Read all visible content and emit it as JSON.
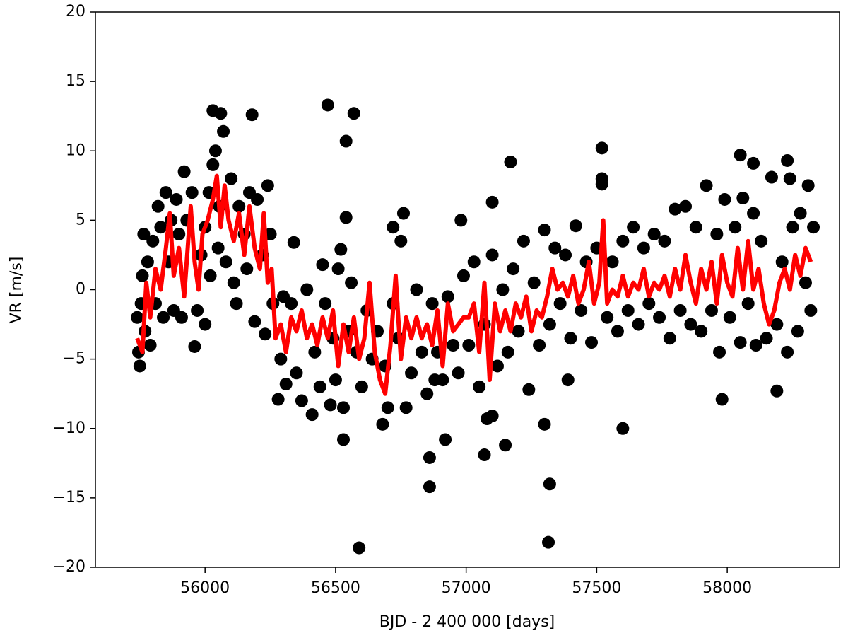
{
  "chart_data": {
    "type": "scatter",
    "xlabel": "BJD - 2 400 000 [days]",
    "ylabel": "VR [m/s]",
    "xlim": [
      55580,
      58430
    ],
    "ylim": [
      -20,
      20
    ],
    "xticks": [
      56000,
      56500,
      57000,
      57500,
      58000
    ],
    "yticks": [
      {
        "value": -20,
        "label": "−20"
      },
      {
        "value": -15,
        "label": "−15"
      },
      {
        "value": -10,
        "label": "−10"
      },
      {
        "value": -5,
        "label": "−5"
      },
      0,
      5,
      10,
      15,
      20
    ],
    "series": [
      {
        "type": "scatter",
        "color": "#000000",
        "x": [
          55740,
          55745,
          55750,
          55755,
          55760,
          55765,
          55770,
          55780,
          55790,
          55800,
          55810,
          55820,
          55830,
          55840,
          55850,
          55860,
          55870,
          55880,
          55890,
          55900,
          55910,
          55930,
          55950,
          55970,
          55985,
          56000,
          56000,
          56015,
          56020,
          56030,
          56040,
          56050,
          56055,
          56070,
          56080,
          56100,
          56110,
          56120,
          56130,
          56150,
          56160,
          56170,
          56190,
          56200,
          56220,
          56230,
          56240,
          56250,
          56260,
          56280,
          56290,
          56300,
          56310,
          56330,
          56340,
          56350,
          56370,
          56390,
          56410,
          56420,
          56440,
          56450,
          56460,
          56480,
          56490,
          56500,
          56510,
          56530,
          56550,
          56560,
          56580,
          56600,
          56620,
          56640,
          56660,
          56680,
          56690,
          56700,
          56720,
          56740,
          56750,
          56770,
          56790,
          56810,
          56830,
          56850,
          56870,
          56890,
          56910,
          56930,
          56950,
          56970,
          56990,
          57010,
          57030,
          57050,
          57070,
          57080,
          57100,
          57120,
          57140,
          57160,
          57180,
          57200,
          57220,
          57240,
          57260,
          57280,
          57300,
          57320,
          57340,
          57360,
          57380,
          57400,
          57420,
          57440,
          57460,
          57480,
          57500,
          57520,
          57540,
          57560,
          57580,
          57600,
          57620,
          57640,
          57660,
          57680,
          57700,
          57720,
          57740,
          57760,
          57780,
          57800,
          57820,
          57840,
          57860,
          57880,
          57900,
          57920,
          57940,
          57960,
          57970,
          57990,
          58010,
          58030,
          58050,
          58060,
          58080,
          58100,
          58110,
          58130,
          58150,
          58170,
          58190,
          58210,
          58230,
          58240,
          58250,
          58270,
          58280,
          58300,
          58310,
          58320,
          58330,
          56030,
          56060,
          56180,
          56470,
          56540,
          56570,
          56590,
          56530,
          56860,
          56860,
          56920,
          57070,
          57100,
          57150,
          57170,
          57300,
          57320,
          57315,
          57520,
          57520,
          57600,
          57980,
          58050,
          58100,
          58190,
          58230,
          57390,
          55960,
          55920,
          57100,
          56980,
          56760,
          56720,
          56540,
          56520,
          56880
        ],
        "values": [
          -2,
          -4.5,
          -5.5,
          -1,
          1,
          4,
          -3,
          2,
          -4,
          3.5,
          -1,
          6,
          4.5,
          -2,
          7,
          2,
          5,
          -1.5,
          6.5,
          4,
          -2,
          5,
          7,
          -1.5,
          2.5,
          4.5,
          -2.5,
          7,
          1,
          9,
          10,
          3,
          6,
          11.4,
          2,
          8,
          0.5,
          -1,
          6,
          4,
          1.5,
          7,
          -2.3,
          6.5,
          2.5,
          -3.2,
          7.5,
          4,
          -1,
          -7.9,
          -5,
          -0.5,
          -6.8,
          -1,
          3.4,
          -6,
          -8,
          0,
          -9,
          -4.5,
          -7,
          1.8,
          -1,
          -8.3,
          -3.5,
          -6.5,
          1.5,
          -8.5,
          -3,
          0.5,
          -4.5,
          -7,
          -1.5,
          -5,
          -3,
          -9.7,
          -5.5,
          -8.5,
          -1,
          -3.5,
          3.5,
          -8.5,
          -6,
          0,
          -4.5,
          -7.5,
          -1,
          -4.5,
          -6.5,
          -0.5,
          -4,
          -6,
          1,
          -4,
          2,
          -7,
          -2.5,
          -9.3,
          2.5,
          -5.5,
          0,
          -4.5,
          1.5,
          -3,
          3.5,
          -7.2,
          0.5,
          -4,
          4.3,
          -2.5,
          3,
          -1,
          2.5,
          -3.5,
          4.6,
          -1.5,
          2,
          -3.8,
          3,
          7.6,
          -2,
          2,
          -3,
          3.5,
          -1.5,
          4.5,
          -2.5,
          3,
          -1,
          4,
          -2,
          3.5,
          -3.5,
          5.8,
          -1.5,
          6,
          -2.5,
          4.5,
          -3,
          7.5,
          -1.5,
          4,
          -4.5,
          6.5,
          -2,
          4.5,
          -3.8,
          6.6,
          -1,
          5.5,
          -4,
          3.5,
          -3.5,
          8.1,
          -2.5,
          2,
          -4.5,
          8,
          4.5,
          -3,
          5.5,
          0.5,
          7.5,
          -1.5,
          4.5,
          12.9,
          12.7,
          12.6,
          13.3,
          10.7,
          12.7,
          -18.6,
          -10.8,
          -12.1,
          -14.2,
          -10.8,
          -11.9,
          -9.1,
          -11.2,
          9.2,
          -9.7,
          -14,
          -18.2,
          10.2,
          8,
          -10,
          -7.9,
          9.7,
          9.1,
          -7.3,
          9.3,
          -6.5,
          -4.1,
          8.5,
          6.3,
          5,
          5.5,
          4.5,
          5.2,
          2.9,
          -6.5
        ]
      },
      {
        "type": "line",
        "color": "#ff0000",
        "x": [
          55740,
          55760,
          55775,
          55790,
          55810,
          55830,
          55850,
          55865,
          55880,
          55900,
          55920,
          55945,
          55960,
          55975,
          55990,
          56010,
          56030,
          56045,
          56060,
          56075,
          56090,
          56110,
          56130,
          56150,
          56170,
          56190,
          56210,
          56225,
          56240,
          56255,
          56270,
          56290,
          56310,
          56330,
          56350,
          56370,
          56390,
          56410,
          56430,
          56450,
          56470,
          56490,
          56510,
          56530,
          56550,
          56570,
          56590,
          56610,
          56630,
          56650,
          56670,
          56690,
          56710,
          56730,
          56750,
          56770,
          56790,
          56810,
          56830,
          56850,
          56870,
          56890,
          56910,
          56930,
          56950,
          56970,
          56990,
          57010,
          57030,
          57050,
          57070,
          57090,
          57110,
          57130,
          57150,
          57170,
          57190,
          57210,
          57230,
          57250,
          57270,
          57290,
          57310,
          57330,
          57350,
          57370,
          57390,
          57410,
          57430,
          57450,
          57470,
          57490,
          57510,
          57525,
          57540,
          57560,
          57580,
          57600,
          57620,
          57640,
          57660,
          57680,
          57700,
          57720,
          57740,
          57760,
          57780,
          57800,
          57820,
          57840,
          57860,
          57880,
          57900,
          57920,
          57940,
          57960,
          57980,
          58000,
          58020,
          58040,
          58060,
          58080,
          58100,
          58120,
          58140,
          58160,
          58180,
          58200,
          58220,
          58240,
          58260,
          58280,
          58300,
          58320
        ],
        "values": [
          -3.5,
          -4.5,
          0.5,
          -2,
          1.5,
          0,
          3,
          5.5,
          1,
          3,
          -0.5,
          6,
          2,
          0,
          4,
          5,
          6.5,
          8.2,
          4.5,
          7.5,
          5,
          3.5,
          5.5,
          2.5,
          6,
          3,
          1.5,
          5.5,
          0.5,
          1.5,
          -3.5,
          -2.5,
          -4.5,
          -2,
          -3,
          -1.5,
          -3.5,
          -2.5,
          -4,
          -2,
          -3.5,
          -1.5,
          -5.5,
          -2.5,
          -4.5,
          -2,
          -5,
          -3.5,
          0.5,
          -4.5,
          -6.5,
          -7.5,
          -4,
          1,
          -5,
          -2,
          -3.5,
          -2,
          -3.5,
          -2.5,
          -4,
          -1.5,
          -5.5,
          -1,
          -3,
          -2.5,
          -2,
          -2,
          -1,
          -4.5,
          0.5,
          -6.5,
          -1,
          -3,
          -1.5,
          -3,
          -1,
          -2,
          -0.5,
          -3,
          -1.5,
          -2,
          -0.5,
          1.5,
          0,
          0.5,
          -0.5,
          1,
          -1,
          0,
          2,
          -1,
          0.5,
          5,
          -1,
          0,
          -0.5,
          1,
          -0.5,
          0.5,
          0,
          1.5,
          -0.5,
          0.5,
          0,
          1,
          -0.5,
          1.5,
          0,
          2.5,
          0.5,
          -1,
          1.5,
          0,
          2,
          -1,
          2.5,
          0.5,
          -0.5,
          3,
          0,
          3.5,
          0,
          1.5,
          -1,
          -2.5,
          -1.5,
          0.5,
          1.5,
          0,
          2.5,
          1,
          3,
          2
        ]
      }
    ]
  }
}
